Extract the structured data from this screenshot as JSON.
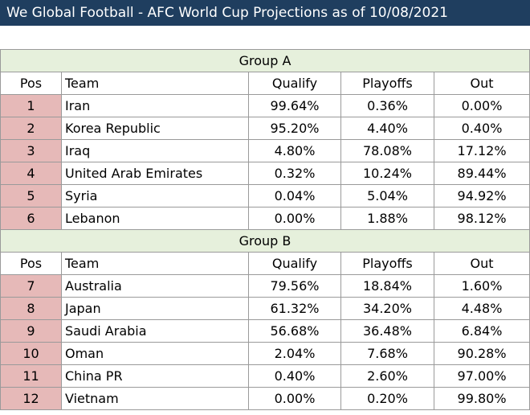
{
  "title": "We Global Football - AFC World Cup Projections as of 10/08/2021",
  "columns": {
    "pos": "Pos",
    "team": "Team",
    "qualify": "Qualify",
    "playoffs": "Playoffs",
    "out": "Out"
  },
  "groups": [
    {
      "name": "Group A",
      "rows": [
        {
          "pos": "1",
          "team": "Iran",
          "qualify": "99.64%",
          "playoffs": "0.36%",
          "out": "0.00%"
        },
        {
          "pos": "2",
          "team": "Korea Republic",
          "qualify": "95.20%",
          "playoffs": "4.40%",
          "out": "0.40%"
        },
        {
          "pos": "3",
          "team": "Iraq",
          "qualify": "4.80%",
          "playoffs": "78.08%",
          "out": "17.12%"
        },
        {
          "pos": "4",
          "team": "United Arab Emirates",
          "qualify": "0.32%",
          "playoffs": "10.24%",
          "out": "89.44%"
        },
        {
          "pos": "5",
          "team": "Syria",
          "qualify": "0.04%",
          "playoffs": "5.04%",
          "out": "94.92%"
        },
        {
          "pos": "6",
          "team": "Lebanon",
          "qualify": "0.00%",
          "playoffs": "1.88%",
          "out": "98.12%"
        }
      ]
    },
    {
      "name": "Group B",
      "rows": [
        {
          "pos": "7",
          "team": "Australia",
          "qualify": "79.56%",
          "playoffs": "18.84%",
          "out": "1.60%"
        },
        {
          "pos": "8",
          "team": "Japan",
          "qualify": "61.32%",
          "playoffs": "34.20%",
          "out": "4.48%"
        },
        {
          "pos": "9",
          "team": "Saudi Arabia",
          "qualify": "56.68%",
          "playoffs": "36.48%",
          "out": "6.84%"
        },
        {
          "pos": "10",
          "team": "Oman",
          "qualify": "2.04%",
          "playoffs": "7.68%",
          "out": "90.28%"
        },
        {
          "pos": "11",
          "team": "China PR",
          "qualify": "0.40%",
          "playoffs": "2.60%",
          "out": "97.00%"
        },
        {
          "pos": "12",
          "team": "Vietnam",
          "qualify": "0.00%",
          "playoffs": "0.20%",
          "out": "99.80%"
        }
      ]
    }
  ]
}
